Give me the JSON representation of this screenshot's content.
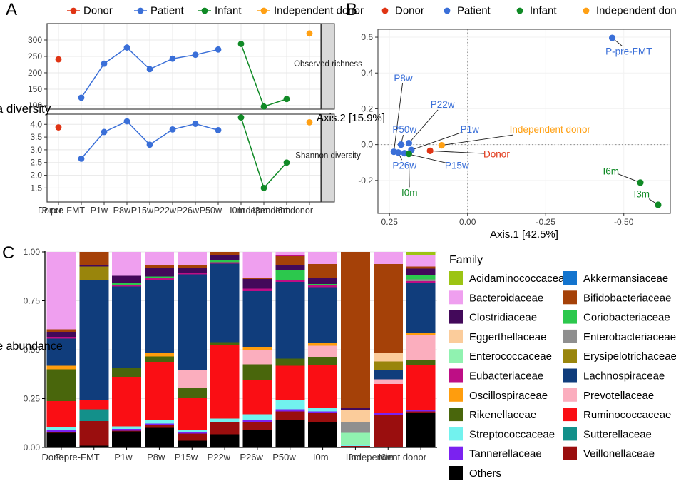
{
  "panel_labels": {
    "a": "A",
    "b": "B",
    "c": "C"
  },
  "group_legend": {
    "items": [
      {
        "key": "donor",
        "label": "Donor",
        "color": "#E03414"
      },
      {
        "key": "patient",
        "label": "Patient",
        "color": "#3A6FD8"
      },
      {
        "key": "infant",
        "label": "Infant",
        "color": "#108A26"
      },
      {
        "key": "independent",
        "label": "Independent donor",
        "color": "#FFA014"
      }
    ]
  },
  "chart_data": [
    {
      "panel": "A",
      "type": "line",
      "ylabel": "Alpha diversity",
      "categories": [
        "Donor",
        "P-pre-FMT",
        "P1w",
        "P8w",
        "P15w",
        "P22w",
        "P26w",
        "P50w",
        "I0m",
        "I3m",
        "I6m",
        "Independent donor"
      ],
      "series_groups": [
        {
          "name": "Donor",
          "color_key": "donor",
          "indices": [
            0
          ],
          "connect": false
        },
        {
          "name": "Patient",
          "color_key": "patient",
          "indices": [
            1,
            2,
            3,
            4,
            5,
            6,
            7
          ],
          "connect": true
        },
        {
          "name": "Infant",
          "color_key": "infant",
          "indices": [
            8,
            9,
            10
          ],
          "connect": true
        },
        {
          "name": "Independent donor",
          "color_key": "independent",
          "indices": [
            11
          ],
          "connect": false
        }
      ],
      "facets": [
        {
          "label": "Observed richness",
          "ylim": [
            89,
            350
          ],
          "yticks": [
            100,
            150,
            200,
            250,
            300
          ],
          "tick_decimals": 0,
          "values": [
            241,
            124,
            228,
            277,
            211,
            243,
            255,
            271,
            288,
            97,
            120,
            320
          ]
        },
        {
          "label": "Shannon diversity",
          "ylim": [
            0.95,
            4.4
          ],
          "yticks": [
            1.5,
            2.0,
            2.5,
            3.0,
            3.5,
            4.0
          ],
          "tick_decimals": 1,
          "values": [
            3.88,
            2.65,
            3.7,
            4.12,
            3.2,
            3.8,
            4.02,
            3.77,
            4.27,
            1.5,
            2.5,
            4.08
          ]
        }
      ]
    },
    {
      "panel": "B",
      "type": "scatter",
      "xlabel": "Axis.1 [42.5%]",
      "ylabel": "Axis.2 [15.9%]",
      "xlim": [
        0.287,
        -0.649
      ],
      "ylim": [
        -0.384,
        0.644
      ],
      "xticks": [
        0.25,
        0,
        -0.25,
        -0.5
      ],
      "yticks": [
        0.6,
        0.4,
        0.2,
        0,
        -0.2
      ],
      "zero_lines": true,
      "points": [
        {
          "label": "Donor",
          "group": "donor",
          "x": 0.12,
          "y": -0.035,
          "lx": -0.093,
          "ly": -0.053
        },
        {
          "label": "P-pre-FMT",
          "group": "patient",
          "x": -0.463,
          "y": 0.596,
          "lx": -0.516,
          "ly": 0.52
        },
        {
          "label": "P1w",
          "group": "patient",
          "x": 0.18,
          "y": -0.03,
          "lx": -0.007,
          "ly": 0.084
        },
        {
          "label": "P8w",
          "group": "patient",
          "x": 0.236,
          "y": -0.04,
          "lx": 0.206,
          "ly": 0.372
        },
        {
          "label": "P15w",
          "group": "patient",
          "x": 0.202,
          "y": -0.048,
          "lx": 0.034,
          "ly": -0.116
        },
        {
          "label": "P22w",
          "group": "patient",
          "x": 0.188,
          "y": 0.008,
          "lx": 0.08,
          "ly": 0.224
        },
        {
          "label": "P26w",
          "group": "patient",
          "x": 0.222,
          "y": -0.044,
          "lx": 0.202,
          "ly": -0.116
        },
        {
          "label": "P50w",
          "group": "patient",
          "x": 0.213,
          "y": 0.0,
          "lx": 0.202,
          "ly": 0.084
        },
        {
          "label": "I0m",
          "group": "infant",
          "x": 0.188,
          "y": -0.052,
          "lx": 0.186,
          "ly": -0.268
        },
        {
          "label": "I3m",
          "group": "infant",
          "x": -0.61,
          "y": -0.336,
          "lx": -0.557,
          "ly": -0.276
        },
        {
          "label": "I6m",
          "group": "infant",
          "x": -0.553,
          "y": -0.212,
          "lx": -0.459,
          "ly": -0.148
        },
        {
          "label": "Independent donor",
          "group": "independent",
          "x": 0.083,
          "y": -0.004,
          "lx": -0.264,
          "ly": 0.084
        }
      ]
    },
    {
      "panel": "C",
      "type": "stacked-bar",
      "ylabel": "Relative abundance",
      "yticks": [
        0,
        0.25,
        0.5,
        0.75,
        1
      ],
      "legend_title": "Family",
      "categories": [
        "Donor",
        "P-pre-FMT",
        "P1w",
        "P8w",
        "P15w",
        "P22w",
        "P26w",
        "P50w",
        "I0m",
        "I3m",
        "I6m",
        "Independent donor"
      ],
      "family_colors": {
        "Acidaminococcaceae": "#9CC413",
        "Akkermansiaceae": "#1374CE",
        "Bacteroidaceae": "#EF9FEF",
        "Bifidobacteriaceae": "#A54108",
        "Clostridiaceae": "#43095A",
        "Coriobacteriaceae": "#2CC84D",
        "Eggerthellaceae": "#FBCC9B",
        "Enterobacteriaceae": "#8F8F8F",
        "Enterococcaceae": "#90F2B0",
        "Erysipelotrichaceae": "#99850C",
        "Eubacteriaceae": "#BE0E85",
        "Lachnospiraceae": "#103D7C",
        "Oscillospiraceae": "#FF9D0D",
        "Prevotellaceae": "#FBAEBE",
        "Rikenellaceae": "#49660C",
        "Ruminococcaceae": "#FA0E14",
        "Streptococcaceae": "#72F2EE",
        "Sutterellaceae": "#13908A",
        "Tannerellaceae": "#7B22F0",
        "Veillonellaceae": "#9A0E0E",
        "Others": "#000000"
      },
      "legend_col1": [
        "Acidaminococcaceae",
        "Bacteroidaceae",
        "Clostridiaceae",
        "Eggerthellaceae",
        "Enterococcaceae",
        "Eubacteriaceae",
        "Oscillospiraceae",
        "Rikenellaceae",
        "Streptococcaceae",
        "Tannerellaceae",
        "Others"
      ],
      "legend_col2": [
        "Akkermansiaceae",
        "Bifidobacteriaceae",
        "Coriobacteriaceae",
        "Enterobacteriaceae",
        "Erysipelotrichaceae",
        "Lachnospiraceae",
        "Prevotellaceae",
        "Ruminococcaceae",
        "Sutterellaceae",
        "Veillonellaceae"
      ],
      "bars": [
        [
          [
            "Others",
            0.075
          ],
          [
            "Veillonellaceae",
            0.006
          ],
          [
            "Tannerellaceae",
            0.009
          ],
          [
            "Streptococcaceae",
            0.014
          ],
          [
            "Ruminococcaceae",
            0.134
          ],
          [
            "Rikenellaceae",
            0.162
          ],
          [
            "Oscillospiraceae",
            0.018
          ],
          [
            "Lachnospiraceae",
            0.139
          ],
          [
            "Eubacteriaceae",
            0.009
          ],
          [
            "Clostridiaceae",
            0.026
          ],
          [
            "Bifidobacteriaceae",
            0.012
          ],
          [
            "Bacteroidaceae",
            0.396
          ]
        ],
        [
          [
            "Others",
            0.01
          ],
          [
            "Veillonellaceae",
            0.125
          ],
          [
            "Sutterellaceae",
            0.061
          ],
          [
            "Ruminococcaceae",
            0.049
          ],
          [
            "Lachnospiraceae",
            0.613
          ],
          [
            "Erysipelotrichaceae",
            0.067
          ],
          [
            "Clostridiaceae",
            0.008
          ],
          [
            "Bifidobacteriaceae",
            0.067
          ]
        ],
        [
          [
            "Others",
            0.082
          ],
          [
            "Veillonellaceae",
            0.004
          ],
          [
            "Tannerellaceae",
            0.008
          ],
          [
            "Streptococcaceae",
            0.013
          ],
          [
            "Ruminococcaceae",
            0.255
          ],
          [
            "Rikenellaceae",
            0.043
          ],
          [
            "Lachnospiraceae",
            0.418
          ],
          [
            "Eubacteriaceae",
            0.01
          ],
          [
            "Coriobacteriaceae",
            0.007
          ],
          [
            "Clostridiaceae",
            0.038
          ],
          [
            "Bacteroidaceae",
            0.122
          ]
        ],
        [
          [
            "Others",
            0.1
          ],
          [
            "Veillonellaceae",
            0.015
          ],
          [
            "Tannerellaceae",
            0.007
          ],
          [
            "Streptococcaceae",
            0.02
          ],
          [
            "Ruminococcaceae",
            0.296
          ],
          [
            "Rikenellaceae",
            0.027
          ],
          [
            "Oscillospiraceae",
            0.018
          ],
          [
            "Lachnospiraceae",
            0.374
          ],
          [
            "Eubacteriaceae",
            0.008
          ],
          [
            "Coriobacteriaceae",
            0.01
          ],
          [
            "Clostridiaceae",
            0.042
          ],
          [
            "Bifidobacteriaceae",
            0.013
          ],
          [
            "Bacteroidaceae",
            0.07
          ]
        ],
        [
          [
            "Others",
            0.035
          ],
          [
            "Veillonellaceae",
            0.037
          ],
          [
            "Tannerellaceae",
            0.006
          ],
          [
            "Streptococcaceae",
            0.012
          ],
          [
            "Ruminococcaceae",
            0.165
          ],
          [
            "Rikenellaceae",
            0.05
          ],
          [
            "Prevotellaceae",
            0.09
          ],
          [
            "Lachnospiraceae",
            0.49
          ],
          [
            "Eubacteriaceae",
            0.01
          ],
          [
            "Clostridiaceae",
            0.025
          ],
          [
            "Bifidobacteriaceae",
            0.012
          ],
          [
            "Bacteroidaceae",
            0.068
          ]
        ],
        [
          [
            "Others",
            0.068
          ],
          [
            "Veillonellaceae",
            0.062
          ],
          [
            "Streptococcaceae",
            0.018
          ],
          [
            "Ruminococcaceae",
            0.377
          ],
          [
            "Rikenellaceae",
            0.013
          ],
          [
            "Lachnospiraceae",
            0.402
          ],
          [
            "Eubacteriaceae",
            0.007
          ],
          [
            "Coriobacteriaceae",
            0.01
          ],
          [
            "Clostridiaceae",
            0.028
          ],
          [
            "Bifidobacteriaceae",
            0.015
          ]
        ],
        [
          [
            "Others",
            0.09
          ],
          [
            "Veillonellaceae",
            0.038
          ],
          [
            "Tannerellaceae",
            0.012
          ],
          [
            "Streptococcaceae",
            0.03
          ],
          [
            "Ruminococcaceae",
            0.175
          ],
          [
            "Rikenellaceae",
            0.08
          ],
          [
            "Prevotellaceae",
            0.075
          ],
          [
            "Oscillospiraceae",
            0.015
          ],
          [
            "Lachnospiraceae",
            0.285
          ],
          [
            "Eubacteriaceae",
            0.012
          ],
          [
            "Clostridiaceae",
            0.05
          ],
          [
            "Bifidobacteriaceae",
            0.006
          ],
          [
            "Bacteroidaceae",
            0.132
          ]
        ],
        [
          [
            "Others",
            0.14
          ],
          [
            "Veillonellaceae",
            0.045
          ],
          [
            "Tannerellaceae",
            0.011
          ],
          [
            "Streptococcaceae",
            0.044
          ],
          [
            "Ruminococcaceae",
            0.178
          ],
          [
            "Rikenellaceae",
            0.037
          ],
          [
            "Lachnospiraceae",
            0.391
          ],
          [
            "Eubacteriaceae",
            0.01
          ],
          [
            "Coriobacteriaceae",
            0.05
          ],
          [
            "Clostridiaceae",
            0.029
          ],
          [
            "Bifidobacteriaceae",
            0.043
          ],
          [
            "Eubacteriaceae",
            0.008
          ],
          [
            "Bacteroidaceae",
            0.014
          ]
        ],
        [
          [
            "Others",
            0.129
          ],
          [
            "Veillonellaceae",
            0.049
          ],
          [
            "Tannerellaceae",
            0.006
          ],
          [
            "Streptococcaceae",
            0.018
          ],
          [
            "Ruminococcaceae",
            0.221
          ],
          [
            "Rikenellaceae",
            0.041
          ],
          [
            "Prevotellaceae",
            0.056
          ],
          [
            "Oscillospiraceae",
            0.013
          ],
          [
            "Lachnospiraceae",
            0.287
          ],
          [
            "Eubacteriaceae",
            0.008
          ],
          [
            "Coriobacteriaceae",
            0.007
          ],
          [
            "Clostridiaceae",
            0.03
          ],
          [
            "Bifidobacteriaceae",
            0.073
          ],
          [
            "Bacteroidaceae",
            0.062
          ]
        ],
        [
          [
            "Others",
            0.004
          ],
          [
            "Veillonellaceae",
            0.004
          ],
          [
            "Streptococcaceae",
            0.005
          ],
          [
            "Enterococcaceae",
            0.061
          ],
          [
            "Enterobacteriaceae",
            0.055
          ],
          [
            "Eggerthellaceae",
            0.061
          ],
          [
            "Clostridiaceae",
            0.012
          ],
          [
            "Bifidobacteriaceae",
            0.798
          ]
        ],
        [
          [
            "Veillonellaceae",
            0.165
          ],
          [
            "Tannerellaceae",
            0.013
          ],
          [
            "Ruminococcaceae",
            0.146
          ],
          [
            "Prevotellaceae",
            0.024
          ],
          [
            "Lachnospiraceae",
            0.049
          ],
          [
            "Erysipelotrichaceae",
            0.043
          ],
          [
            "Eggerthellaceae",
            0.042
          ],
          [
            "Bifidobacteriaceae",
            0.456
          ],
          [
            "Bacteroidaceae",
            0.062
          ]
        ],
        [
          [
            "Others",
            0.178
          ],
          [
            "Veillonellaceae",
            0.007
          ],
          [
            "Tannerellaceae",
            0.007
          ],
          [
            "Ruminococcaceae",
            0.231
          ],
          [
            "Rikenellaceae",
            0.022
          ],
          [
            "Prevotellaceae",
            0.128
          ],
          [
            "Oscillospiraceae",
            0.012
          ],
          [
            "Lachnospiraceae",
            0.255
          ],
          [
            "Eubacteriaceae",
            0.01
          ],
          [
            "Enterobacteriaceae",
            0.009
          ],
          [
            "Coriobacteriaceae",
            0.024
          ],
          [
            "Clostridiaceae",
            0.031
          ],
          [
            "Bifidobacteriaceae",
            0.012
          ],
          [
            "Bacteroidaceae",
            0.057
          ],
          [
            "Acidaminococcaceae",
            0.017
          ]
        ]
      ]
    }
  ]
}
